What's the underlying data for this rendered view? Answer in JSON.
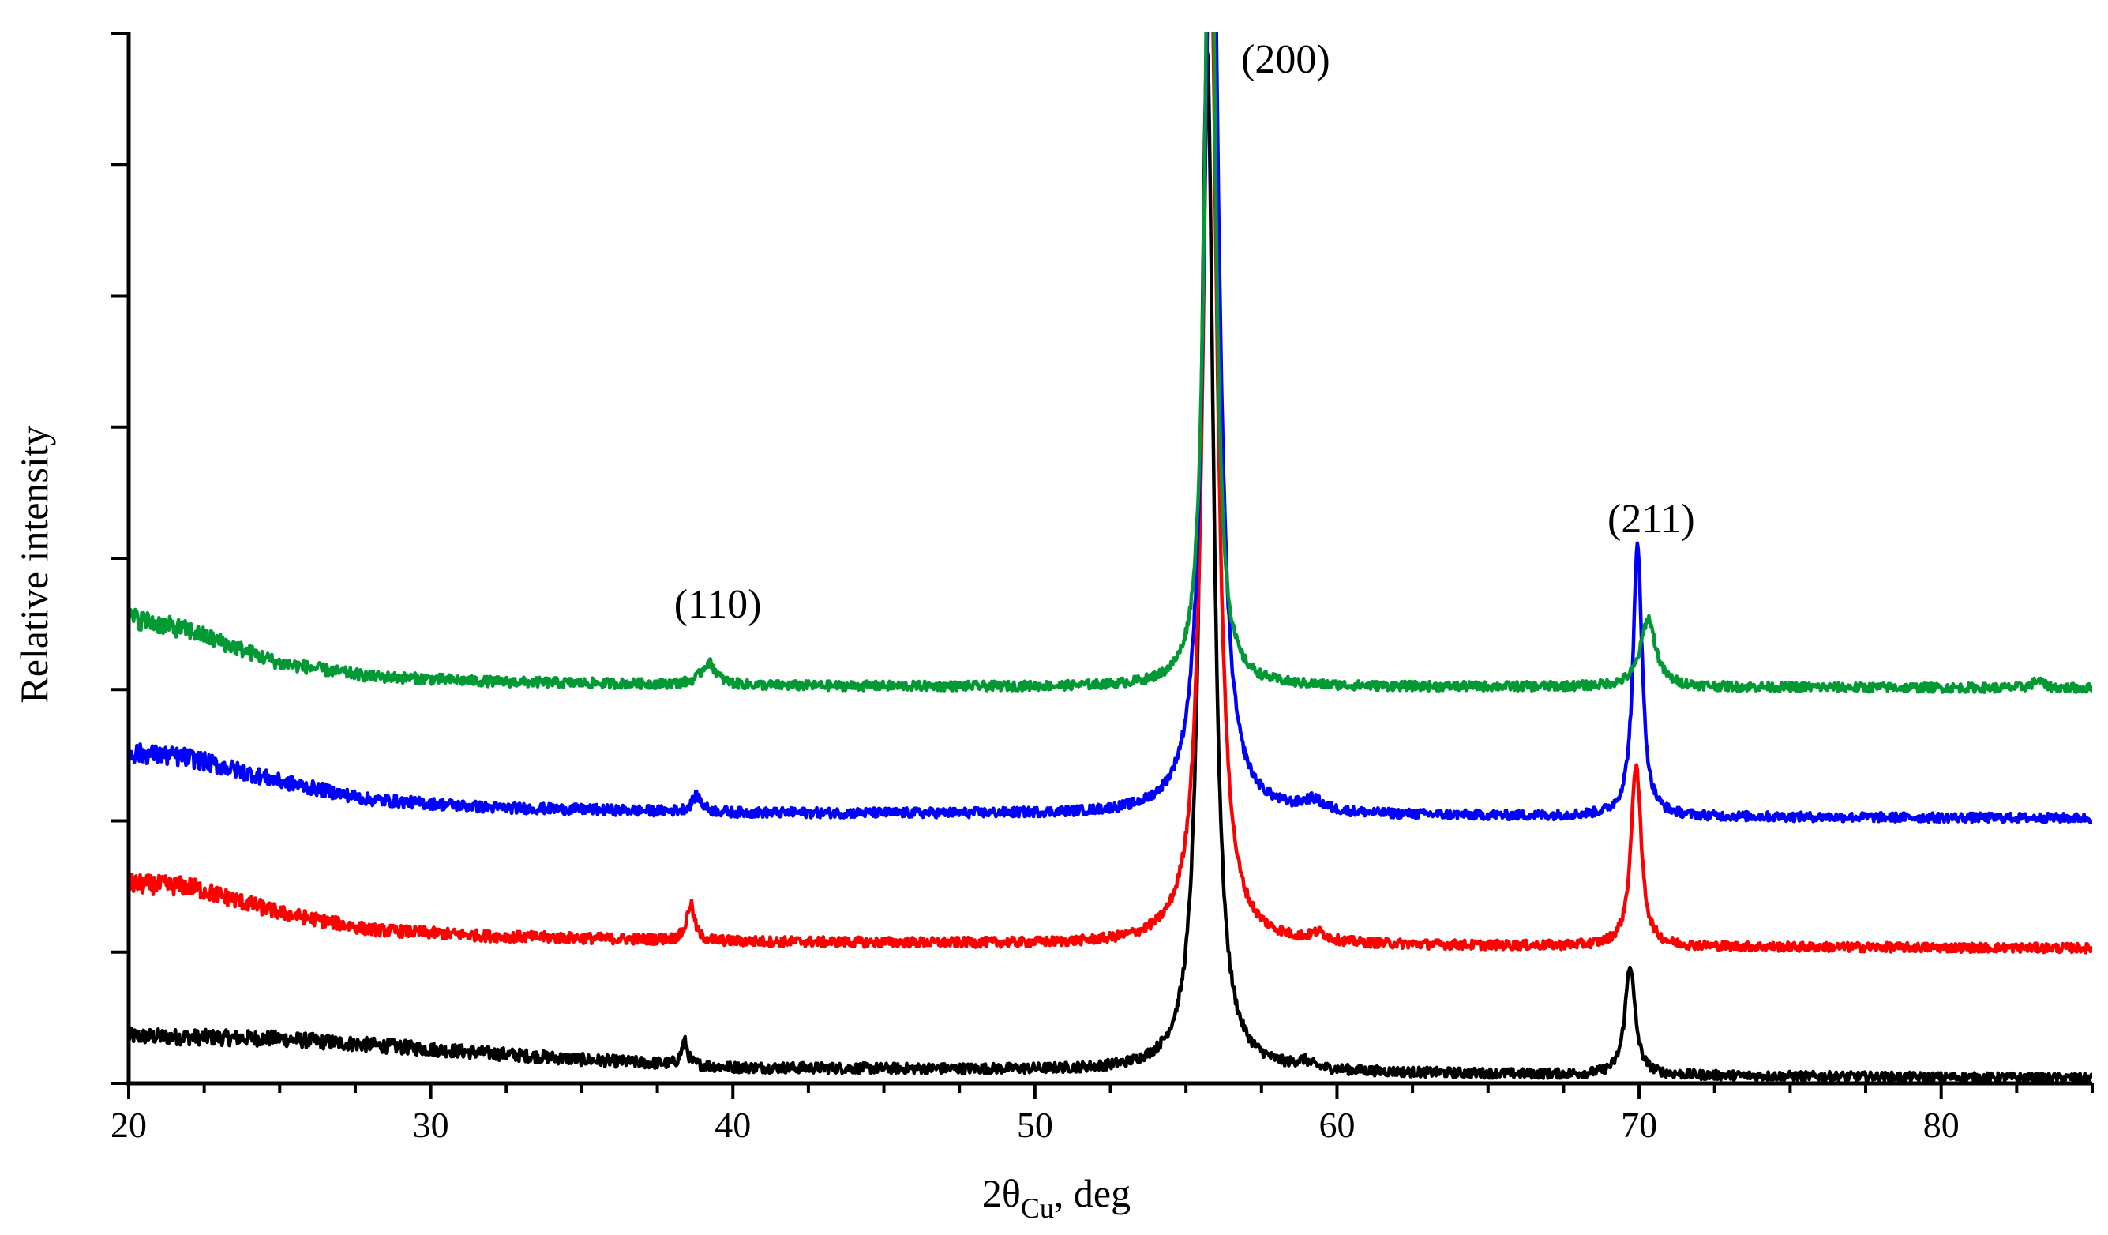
{
  "chart_data": {
    "type": "line",
    "xlabel_main": "2θ",
    "xlabel_sub": "Cu",
    "xlabel_suffix": ", deg",
    "ylabel": "Relative  intensity",
    "xlim": [
      20,
      85
    ],
    "xticks_major": [
      20,
      30,
      40,
      50,
      60,
      70,
      80
    ],
    "xtick_labels": [
      "20",
      "30",
      "40",
      "50",
      "60",
      "70",
      "80"
    ],
    "xticks_minor_step": 2.5,
    "ylim": [
      0,
      8
    ],
    "yticks": [
      0,
      1,
      2,
      3,
      4,
      5,
      6,
      7,
      8
    ],
    "grid": false,
    "series": [
      {
        "name": "black",
        "color": "#000000",
        "offset": 0.36,
        "background": [
          [
            20,
            0.36
          ],
          [
            25,
            0.34
          ],
          [
            30,
            0.26
          ],
          [
            35,
            0.18
          ],
          [
            40,
            0.12
          ],
          [
            50,
            0.1
          ],
          [
            60,
            0.08
          ],
          [
            70,
            0.06
          ],
          [
            85,
            0.04
          ]
        ],
        "peaks": [
          [
            38.4,
            0.18,
            0.12
          ],
          [
            55.7,
            7.8,
            0.26
          ],
          [
            58.9,
            0.05,
            0.3
          ],
          [
            69.7,
            0.84,
            0.2
          ]
        ]
      },
      {
        "name": "red",
        "color": "#ff0000",
        "offset": 1.55,
        "background": [
          [
            20,
            1.52
          ],
          [
            22,
            1.5
          ],
          [
            25,
            1.3
          ],
          [
            28,
            1.17
          ],
          [
            32,
            1.12
          ],
          [
            40,
            1.08
          ],
          [
            50,
            1.06
          ],
          [
            60,
            1.05
          ],
          [
            70,
            1.04
          ],
          [
            85,
            1.03
          ]
        ],
        "peaks": [
          [
            38.6,
            0.28,
            0.15
          ],
          [
            55.8,
            7.8,
            0.28
          ],
          [
            59.4,
            0.06,
            0.3
          ],
          [
            69.9,
            1.4,
            0.2
          ]
        ]
      },
      {
        "name": "blue",
        "color": "#0000ff",
        "offset": 2.5,
        "background": [
          [
            20,
            2.52
          ],
          [
            22,
            2.48
          ],
          [
            25,
            2.3
          ],
          [
            28,
            2.16
          ],
          [
            32,
            2.1
          ],
          [
            40,
            2.06
          ],
          [
            50,
            2.05
          ],
          [
            60,
            2.04
          ],
          [
            70,
            2.03
          ],
          [
            85,
            2.02
          ]
        ],
        "peaks": [
          [
            38.8,
            0.12,
            0.2
          ],
          [
            55.85,
            7.8,
            0.28
          ],
          [
            59.2,
            0.08,
            0.4
          ],
          [
            69.95,
            2.08,
            0.18
          ]
        ]
      },
      {
        "name": "green",
        "color": "#009933",
        "offset": 3.55,
        "background": [
          [
            20,
            3.55
          ],
          [
            22,
            3.45
          ],
          [
            25,
            3.2
          ],
          [
            28,
            3.1
          ],
          [
            32,
            3.06
          ],
          [
            40,
            3.03
          ],
          [
            50,
            3.02
          ],
          [
            60,
            3.02
          ],
          [
            70,
            3.02
          ],
          [
            85,
            3.01
          ]
        ],
        "peaks": [
          [
            39.2,
            0.17,
            0.3
          ],
          [
            55.8,
            7.2,
            0.2
          ],
          [
            70.3,
            0.52,
            0.3
          ],
          [
            83.2,
            0.06,
            0.2
          ]
        ]
      }
    ],
    "annotations": [
      {
        "text": "(110)",
        "x": 39.5,
        "y": 3.55
      },
      {
        "text": "(200)",
        "x": 58.3,
        "y": 7.7
      },
      {
        "text": "(211)",
        "x": 70.4,
        "y": 4.2
      }
    ]
  }
}
